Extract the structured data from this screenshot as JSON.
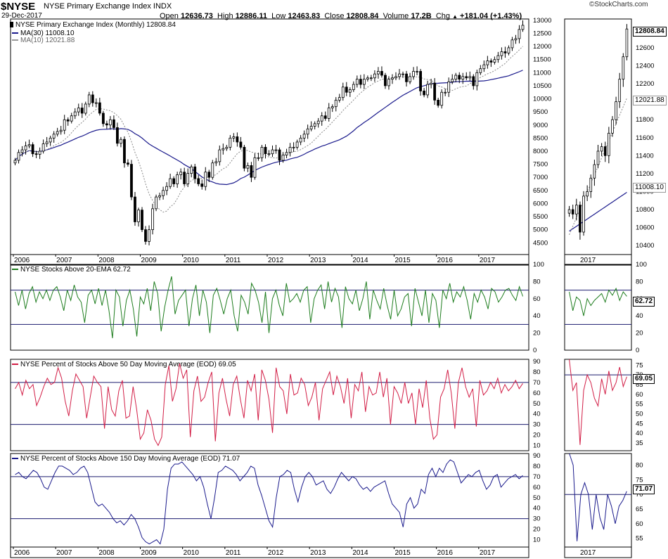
{
  "header": {
    "symbol": "$NYSE",
    "description": "NYSE Primary Exchange Index INDX",
    "date": "29-Dec-2017",
    "open_label": "Open",
    "open": "12636.73",
    "high_label": "High",
    "high": "12886.11",
    "low_label": "Low",
    "low": "12463.83",
    "close_label": "Close",
    "close": "12808.84",
    "volume_label": "Volume",
    "volume": "17.2B",
    "chg_label": "Chg",
    "chg": "+181.04 (+1.43%)",
    "logo": "©StockCharts.com",
    "up_symbol": "▲"
  },
  "colors": {
    "ma30": "#1a1a8c",
    "ma10": "#888888",
    "candle": "#000000",
    "ema20": "#1e7d1e",
    "pct50": "#d21e46",
    "pct150": "#1a1a8c",
    "gridline": "#1a1a6e"
  },
  "chart_data": [
    {
      "type": "candlestick",
      "title": "NYSE Primary Exchange Index (Monthly) 12808.84",
      "legend": [
        {
          "name": "MA(30) 11008.10",
          "color": "#1a1a8c"
        },
        {
          "name": "MA(10) 12021.88",
          "color": "#888888"
        }
      ],
      "x_labels": [
        "2006",
        "2007",
        "2008",
        "2009",
        "2010",
        "2011",
        "2012",
        "2013",
        "2014",
        "2015",
        "2016",
        "2017"
      ],
      "y_ticks": [
        4500,
        5000,
        5500,
        6000,
        6500,
        7000,
        7500,
        8000,
        8500,
        9000,
        9500,
        10000,
        10500,
        11000,
        11500,
        12000,
        12500,
        13000
      ],
      "ylim": [
        4050,
        13050
      ],
      "close": [
        7650,
        7950,
        8050,
        8200,
        8250,
        7900,
        7880,
        8000,
        8280,
        8350,
        8500,
        8650,
        8750,
        8800,
        9200,
        9150,
        9350,
        9500,
        9650,
        9450,
        9800,
        10150,
        9850,
        9850,
        9450,
        9050,
        9000,
        9200,
        8900,
        8300,
        8450,
        7550,
        7500,
        6250,
        5300,
        5750,
        5000,
        4550,
        5000,
        5800,
        6250,
        6300,
        6500,
        6650,
        6950,
        6750,
        7100,
        7200,
        6750,
        7150,
        7400,
        6950,
        6750,
        6650,
        7200,
        7000,
        7550,
        7600,
        8050,
        8100,
        8150,
        8500,
        8550,
        8350,
        8150,
        7350,
        7450,
        7000,
        7750,
        7750,
        8150,
        7900,
        7900,
        8050,
        8050,
        7650,
        7850,
        7950,
        8150,
        8150,
        8350,
        8500,
        8650,
        8850,
        8950,
        9050,
        9150,
        9350,
        9250,
        9650,
        9700,
        9950,
        10050,
        10450,
        10250,
        10350,
        10550,
        10750,
        10550,
        10750,
        10800,
        10800,
        10950,
        11050,
        10900,
        10500,
        10750,
        10800,
        10850,
        10950,
        10950,
        10650,
        10850,
        11050,
        11050,
        10300,
        10150,
        10550,
        10600,
        9950,
        9750,
        10250,
        10250,
        10650,
        10750,
        10900,
        10750,
        10850,
        10800,
        10850,
        10500,
        11000,
        11150,
        11300,
        11450,
        11400,
        11500,
        11650,
        11800,
        11750,
        11950,
        12250,
        12300,
        12650,
        12808.84
      ],
      "ma30_latest": 11008.1,
      "ma10_latest": 12021.88,
      "zoom": {
        "x_labels": [
          "2017"
        ],
        "y_ticks": [
          10400,
          10600,
          10800,
          11000,
          11200,
          11400,
          11600,
          11800,
          12000,
          12200,
          12400,
          12600
        ],
        "ylim": [
          10300,
          12920
        ],
        "close": [
          10800,
          10750,
          10850,
          10550,
          10950,
          11000,
          11150,
          11300,
          11450,
          11500,
          11400,
          11650,
          11800,
          12000,
          12250,
          12500,
          12808.84
        ],
        "last_label": "12808.84",
        "ma10_label": "12021.88",
        "ma30_label": "11008.10"
      }
    },
    {
      "type": "line",
      "title": "NYSE Stocks Above 20-EMA 62.72",
      "series": [
        {
          "name": "NYSE Stocks Above 20-EMA",
          "color": "#1e7d1e"
        }
      ],
      "y_ticks": [
        0,
        20,
        40,
        60,
        80,
        100
      ],
      "ylim": [
        0,
        100
      ],
      "reference_lines": [
        30,
        70
      ],
      "values": [
        68,
        52,
        70,
        48,
        66,
        74,
        56,
        68,
        60,
        70,
        58,
        70,
        74,
        62,
        46,
        70,
        58,
        76,
        62,
        56,
        32,
        64,
        70,
        54,
        72,
        52,
        70,
        46,
        14,
        70,
        62,
        28,
        58,
        70,
        48,
        16,
        62,
        54,
        72,
        46,
        80,
        66,
        22,
        50,
        70,
        86,
        42,
        58,
        64,
        70,
        28,
        60,
        76,
        40,
        70,
        56,
        20,
        64,
        72,
        58,
        42,
        60,
        70,
        40,
        22,
        64,
        56,
        42,
        78,
        70,
        56,
        32,
        68,
        20,
        60,
        70,
        52,
        40,
        78,
        56,
        60,
        66,
        56,
        70,
        74,
        32,
        60,
        70,
        76,
        48,
        80,
        56,
        72,
        62,
        26,
        74,
        60,
        54,
        70,
        46,
        60,
        80,
        36,
        70,
        58,
        48,
        72,
        52,
        36,
        70,
        40,
        48,
        62,
        66,
        28,
        72,
        56,
        40,
        70,
        32,
        66,
        58,
        26,
        70,
        60,
        78,
        56,
        68,
        62,
        74,
        58,
        36,
        66,
        56,
        70,
        62,
        48,
        72,
        68,
        56,
        62,
        70,
        72,
        64,
        58,
        74,
        62.72
      ],
      "last_label": "62.72",
      "zoom": {
        "y_ticks": [
          0,
          20,
          40,
          60,
          80,
          100
        ],
        "values": [
          68,
          46,
          62,
          58,
          40,
          60,
          52,
          58,
          62,
          66,
          56,
          70,
          64,
          72,
          58,
          68,
          62.72
        ]
      }
    },
    {
      "type": "line",
      "title": "NYSE Percent of Stocks Above 50 Day Moving Average (EOD) 69.05",
      "series": [
        {
          "name": "NYSE Percent of Stocks Above 50 Day Moving Average",
          "color": "#d21e46"
        }
      ],
      "y_ticks": [
        10,
        20,
        30,
        40,
        50,
        60,
        70,
        80,
        90
      ],
      "ylim": [
        5,
        92
      ],
      "reference_lines": [
        30,
        70
      ],
      "values": [
        64,
        70,
        58,
        72,
        64,
        68,
        48,
        56,
        66,
        74,
        68,
        70,
        84,
        74,
        52,
        38,
        62,
        78,
        72,
        66,
        36,
        56,
        76,
        70,
        66,
        26,
        66,
        44,
        38,
        62,
        72,
        36,
        38,
        66,
        44,
        16,
        22,
        44,
        34,
        16,
        10,
        18,
        68,
        86,
        52,
        64,
        88,
        74,
        82,
        18,
        62,
        76,
        52,
        56,
        70,
        80,
        14,
        60,
        74,
        54,
        38,
        68,
        76,
        54,
        36,
        72,
        62,
        78,
        34,
        82,
        72,
        54,
        22,
        84,
        66,
        62,
        40,
        78,
        58,
        60,
        74,
        68,
        48,
        56,
        70,
        34,
        64,
        72,
        80,
        58,
        76,
        66,
        50,
        74,
        36,
        68,
        62,
        80,
        42,
        66,
        58,
        60,
        80,
        56,
        74,
        30,
        66,
        60,
        50,
        70,
        50,
        60,
        30,
        64,
        46,
        72,
        36,
        16,
        20,
        56,
        64,
        82,
        60,
        26,
        70,
        84,
        66,
        56,
        64,
        28,
        72,
        58,
        62,
        70,
        64,
        74,
        60,
        68,
        62,
        66,
        72,
        64,
        69.05
      ],
      "last_label": "69.05",
      "zoom": {
        "y_ticks": [
          35,
          40,
          45,
          50,
          55,
          60,
          65,
          70,
          75
        ],
        "ylim": [
          31,
          78
        ],
        "values": [
          78,
          62,
          66,
          34,
          62,
          70,
          66,
          58,
          54,
          68,
          60,
          72,
          62,
          66,
          74,
          64,
          69.05
        ]
      }
    },
    {
      "type": "line",
      "title": "NYSE Percent of Stocks Above 150 Day Moving Average (EOD) 71.07",
      "series": [
        {
          "name": "NYSE Percent of Stocks Above 150 Day Moving Average",
          "color": "#1a1a8c"
        }
      ],
      "y_ticks": [
        10,
        20,
        30,
        40,
        50,
        60,
        70,
        80,
        90
      ],
      "ylim": [
        3,
        92
      ],
      "reference_lines": [
        30,
        70
      ],
      "values": [
        72,
        74,
        70,
        68,
        72,
        76,
        74,
        68,
        60,
        58,
        66,
        74,
        80,
        80,
        78,
        76,
        72,
        74,
        78,
        80,
        74,
        60,
        46,
        42,
        44,
        40,
        36,
        30,
        26,
        28,
        24,
        28,
        34,
        30,
        22,
        12,
        8,
        6,
        8,
        10,
        6,
        20,
        58,
        78,
        82,
        82,
        84,
        80,
        76,
        72,
        66,
        70,
        60,
        44,
        30,
        50,
        74,
        76,
        80,
        78,
        76,
        72,
        66,
        70,
        74,
        80,
        78,
        62,
        52,
        40,
        28,
        22,
        50,
        70,
        72,
        76,
        74,
        58,
        46,
        60,
        70,
        74,
        70,
        62,
        64,
        66,
        58,
        54,
        60,
        68,
        74,
        70,
        66,
        70,
        68,
        62,
        58,
        60,
        56,
        60,
        62,
        64,
        66,
        54,
        44,
        40,
        36,
        22,
        44,
        50,
        40,
        44,
        58,
        54,
        72,
        78,
        70,
        78,
        74,
        82,
        86,
        84,
        74,
        64,
        68,
        72,
        70,
        74,
        76,
        66,
        58,
        62,
        70,
        72,
        60,
        64,
        68,
        70,
        72,
        68,
        71.07
      ],
      "last_label": "71.07",
      "zoom": {
        "y_ticks": [
          55,
          60,
          65,
          70,
          75,
          80
        ],
        "ylim": [
          52,
          84
        ],
        "values": [
          84,
          80,
          54,
          70,
          74,
          70,
          58,
          70,
          62,
          58,
          70,
          66,
          60,
          66,
          68,
          71.07
        ]
      }
    }
  ]
}
